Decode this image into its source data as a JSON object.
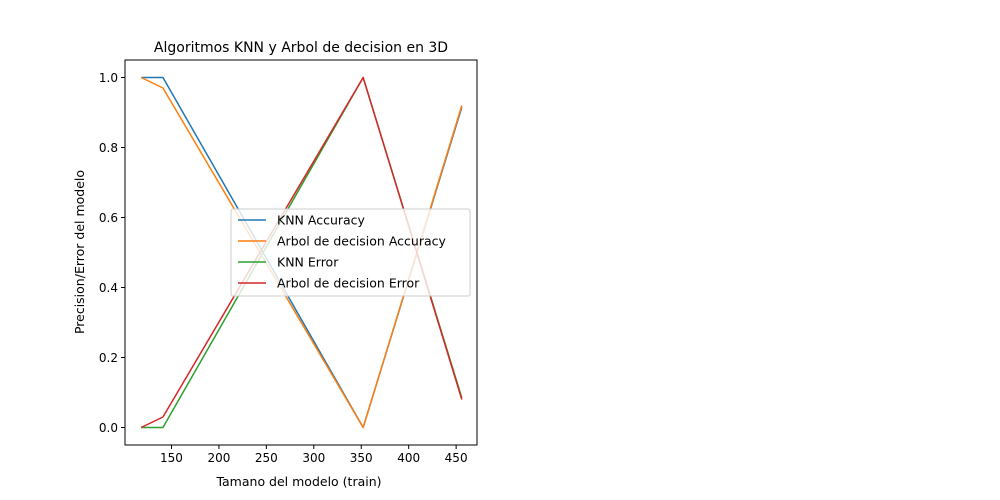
{
  "chart_data": {
    "type": "line",
    "title": "Algoritmos KNN y Arbol de decision en 3D",
    "xlabel": "Tamano del modelo (train)",
    "ylabel": "Precision/Error del modelo",
    "xlim": [
      101,
      472
    ],
    "ylim": [
      -0.05,
      1.05
    ],
    "xticks": [
      150,
      200,
      250,
      300,
      350,
      400,
      450
    ],
    "yticks": [
      0.0,
      0.2,
      0.4,
      0.6,
      0.8,
      1.0
    ],
    "xtick_labels": [
      "150",
      "200",
      "250",
      "300",
      "350",
      "400",
      "450"
    ],
    "ytick_labels": [
      "0.0",
      "0.2",
      "0.4",
      "0.6",
      "0.8",
      "1.0"
    ],
    "x": [
      118,
      141,
      352,
      456
    ],
    "series": [
      {
        "name": "KNN Accuracy",
        "color": "#1f77b4",
        "values": [
          1.0,
          1.0,
          0.0,
          0.915
        ]
      },
      {
        "name": "Arbol de decision Accuracy",
        "color": "#ff7f0e",
        "values": [
          1.0,
          0.97,
          0.0,
          0.92
        ]
      },
      {
        "name": "KNN Error",
        "color": "#2ca02c",
        "values": [
          0.0,
          0.0,
          1.0,
          0.085
        ]
      },
      {
        "name": "Arbol de decision Error",
        "color": "#d62728",
        "values": [
          0.0,
          0.03,
          1.0,
          0.08
        ]
      }
    ],
    "legend_position": "center",
    "grid": false
  }
}
